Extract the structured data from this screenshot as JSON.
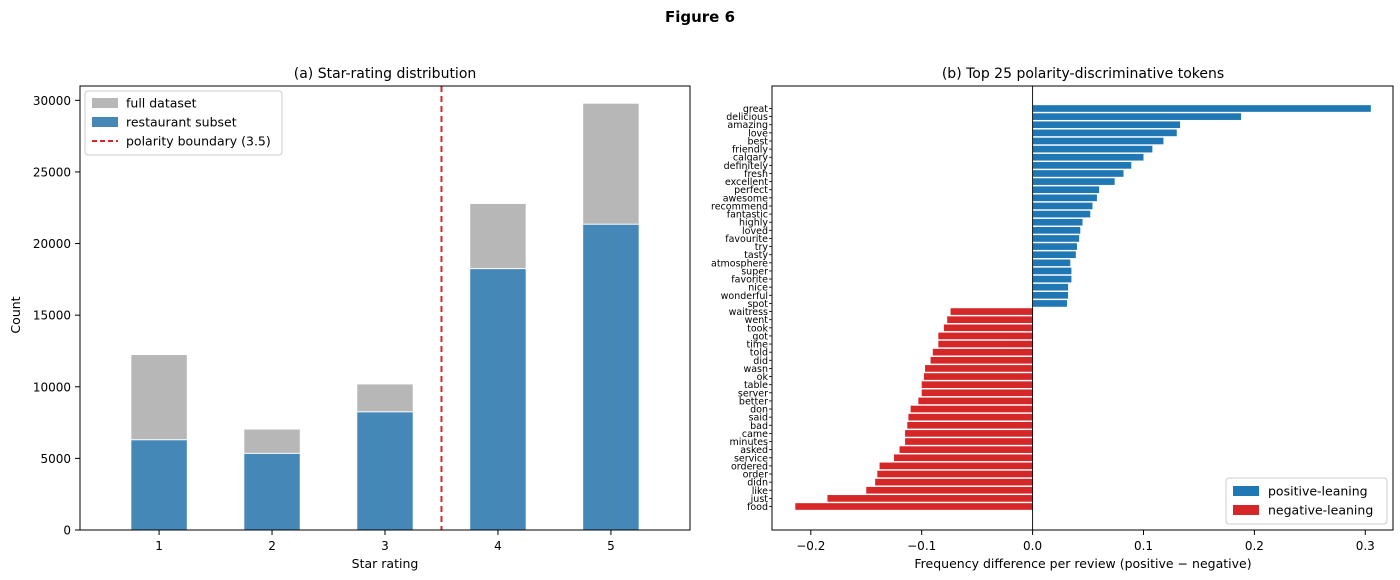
{
  "figure_title": "Figure 6",
  "chart_data": [
    {
      "type": "bar",
      "title": "(a)  Star-rating distribution",
      "xlabel": "Star rating",
      "ylabel": "Count",
      "categories": [
        "1",
        "2",
        "3",
        "4",
        "5"
      ],
      "x": [
        1,
        2,
        3,
        4,
        5
      ],
      "ylim": [
        0,
        31000
      ],
      "xlim": [
        0.3,
        5.7
      ],
      "yticks": [
        0,
        5000,
        10000,
        15000,
        20000,
        25000,
        30000
      ],
      "grid": false,
      "legend_position": "upper-left",
      "series": [
        {
          "name": "full dataset",
          "color": "#b7b7b7",
          "values": [
            12250,
            7050,
            10200,
            22800,
            29800
          ]
        },
        {
          "name": "restaurant subset",
          "color": "#4587b7",
          "values": [
            6300,
            5350,
            8250,
            18250,
            21350
          ]
        }
      ],
      "reference_line": {
        "name": "polarity boundary (3.5)",
        "x": 3.5,
        "color": "#d62728",
        "style": "dashed"
      }
    },
    {
      "type": "bar",
      "orientation": "horizontal",
      "title": "(b)  Top 25 polarity-discriminative tokens",
      "xlabel": "Frequency difference per review (positive − negative)",
      "ylabel": "",
      "xlim": [
        -0.235,
        0.325
      ],
      "xticks": [
        -0.2,
        -0.1,
        0.0,
        0.1,
        0.2,
        0.3
      ],
      "xtick_labels": [
        "−0.2",
        "−0.1",
        "0.0",
        "0.1",
        "0.2",
        "0.3"
      ],
      "grid": false,
      "legend_position": "lower-right",
      "legend": [
        {
          "name": "positive-leaning",
          "color": "#1f77b4"
        },
        {
          "name": "negative-leaning",
          "color": "#d62728"
        }
      ],
      "categories": [
        "great",
        "delicious",
        "amazing",
        "love",
        "best",
        "friendly",
        "calgary",
        "definitely",
        "fresh",
        "excellent",
        "perfect",
        "awesome",
        "recommend",
        "fantastic",
        "highly",
        "loved",
        "favourite",
        "try",
        "tasty",
        "atmosphere",
        "super",
        "favorite",
        "nice",
        "wonderful",
        "spot",
        "waitress",
        "went",
        "took",
        "got",
        "time",
        "told",
        "did",
        "wasn",
        "ok",
        "table",
        "server",
        "better",
        "don",
        "said",
        "bad",
        "came",
        "minutes",
        "asked",
        "service",
        "ordered",
        "order",
        "didn",
        "like",
        "just",
        "food"
      ],
      "values": [
        0.305,
        0.188,
        0.133,
        0.13,
        0.118,
        0.108,
        0.1,
        0.089,
        0.082,
        0.074,
        0.06,
        0.058,
        0.054,
        0.052,
        0.045,
        0.043,
        0.042,
        0.04,
        0.039,
        0.034,
        0.035,
        0.035,
        0.032,
        0.032,
        0.031,
        -0.074,
        -0.077,
        -0.08,
        -0.085,
        -0.085,
        -0.09,
        -0.092,
        -0.097,
        -0.098,
        -0.1,
        -0.1,
        -0.103,
        -0.11,
        -0.112,
        -0.113,
        -0.115,
        -0.115,
        -0.12,
        -0.125,
        -0.138,
        -0.14,
        -0.142,
        -0.15,
        -0.185,
        -0.214
      ],
      "colors": {
        "positive": "#1f77b4",
        "negative": "#d62728"
      }
    }
  ]
}
